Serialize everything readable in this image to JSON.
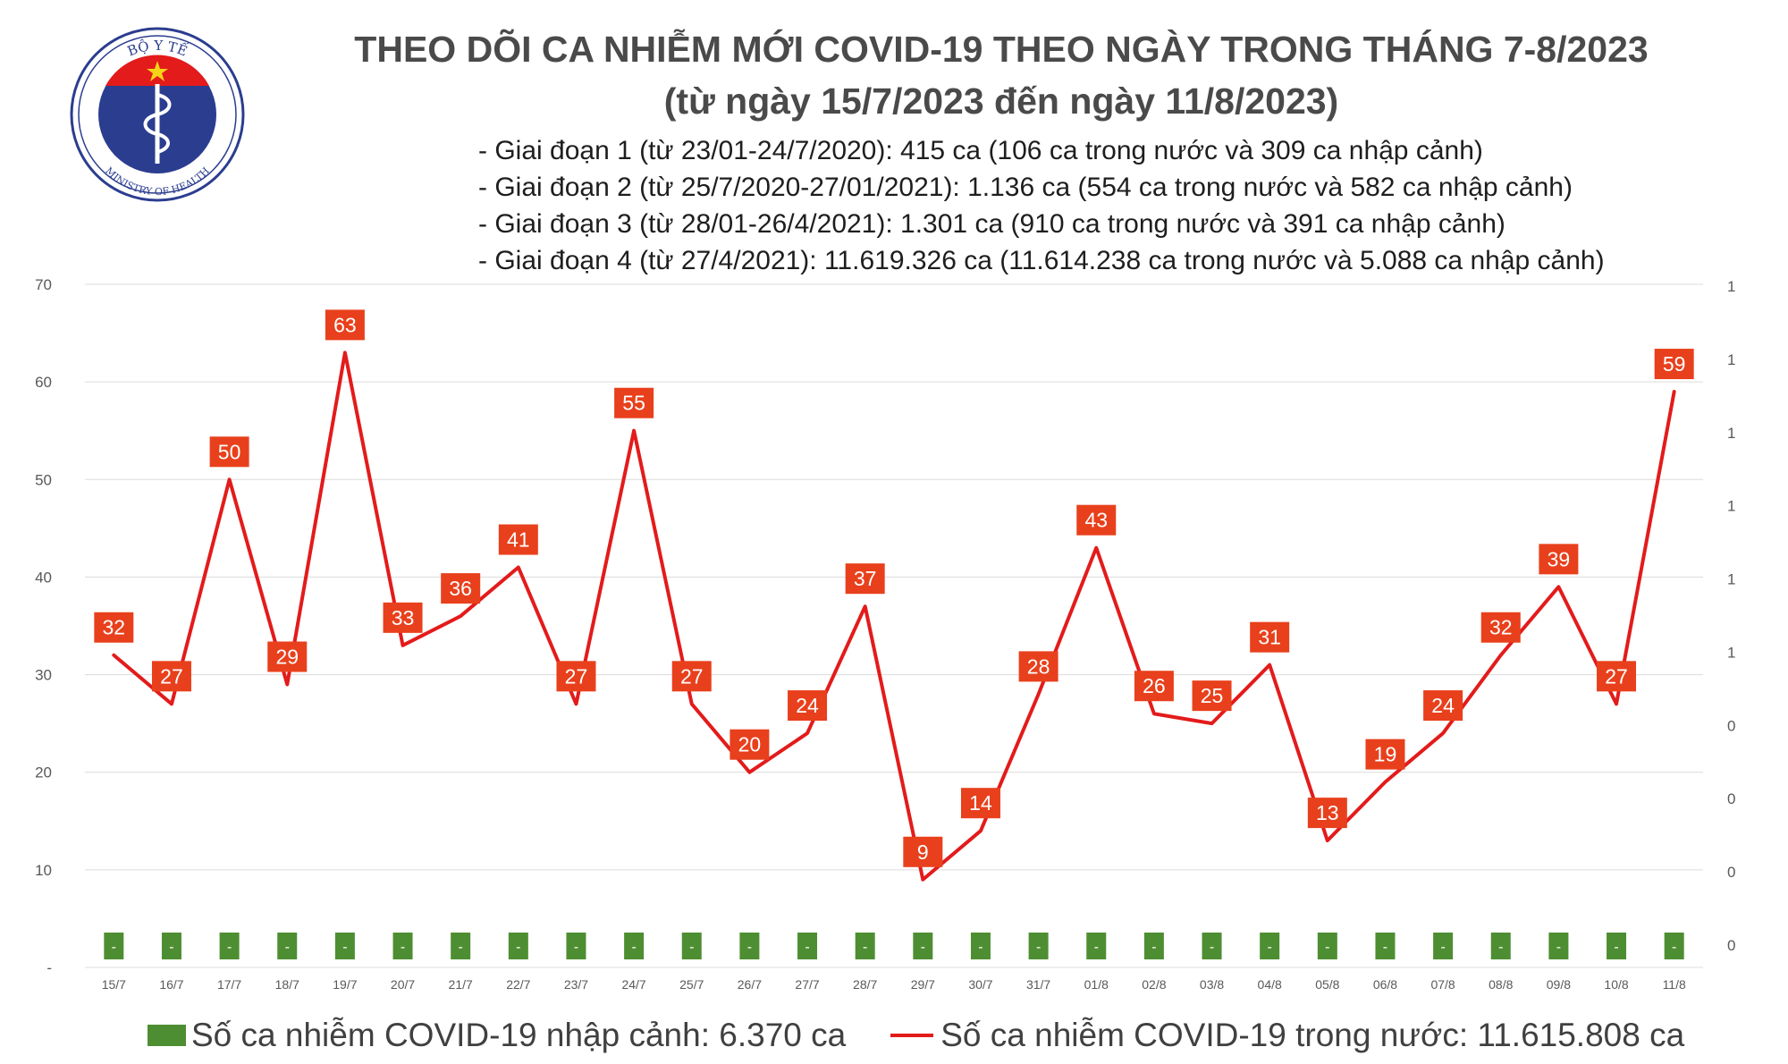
{
  "logo": {
    "text_top": "BỘ Y TẾ",
    "text_bottom": "MINISTRY OF HEALTH"
  },
  "title_line1": "THEO DÕI CA NHIỄM MỚI COVID-19 THEO NGÀY TRONG THÁNG 7-8/2023",
  "title_line2": "(từ ngày 15/7/2023 đến ngày 11/8/2023)",
  "notes": [
    "- Giai đoạn 1 (từ 23/01-24/7/2020): 415 ca (106 ca trong nước và 309 ca nhập cảnh)",
    "- Giai đoạn 2 (từ 25/7/2020-27/01/2021): 1.136 ca (554 ca trong nước và 582 ca nhập cảnh)",
    "- Giai đoạn 3 (từ 28/01-26/4/2021): 1.301 ca (910 ca trong nước và 391 ca nhập cảnh)",
    "- Giai đoạn 4 (từ 27/4/2021): 11.619.326 ca (11.614.238 ca trong nước và 5.088 ca nhập cảnh)"
  ],
  "legend": {
    "bar_label": "Số ca nhiễm COVID-19 nhập cảnh: 6.370 ca",
    "line_label": "Số ca nhiễm COVID-19 trong nước: 11.615.808 ca"
  },
  "colors": {
    "line": "#e31b1b",
    "label_box": "#e8401c",
    "bar": "#4e8e32",
    "grid": "#dcdcdc",
    "logo_blue": "#2b3d8f"
  },
  "chart_data": {
    "type": "line",
    "categories": [
      "15/7",
      "16/7",
      "17/7",
      "18/7",
      "19/7",
      "20/7",
      "21/7",
      "22/7",
      "23/7",
      "24/7",
      "25/7",
      "26/7",
      "27/7",
      "28/7",
      "29/7",
      "30/7",
      "31/7",
      "01/8",
      "02/8",
      "03/8",
      "04/8",
      "05/8",
      "06/8",
      "07/8",
      "08/8",
      "09/8",
      "10/8",
      "11/8"
    ],
    "series": [
      {
        "name": "Số ca nhiễm COVID-19 trong nước",
        "type": "line",
        "axis": "left",
        "values": [
          32,
          27,
          50,
          29,
          63,
          33,
          36,
          41,
          27,
          55,
          27,
          20,
          24,
          37,
          9,
          14,
          28,
          43,
          26,
          25,
          31,
          13,
          19,
          24,
          32,
          39,
          27,
          59
        ]
      },
      {
        "name": "Số ca nhiễm COVID-19 nhập cảnh",
        "type": "bar",
        "axis": "right",
        "values": [
          0,
          0,
          0,
          0,
          0,
          0,
          0,
          0,
          0,
          0,
          0,
          0,
          0,
          0,
          0,
          0,
          0,
          0,
          0,
          0,
          0,
          0,
          0,
          0,
          0,
          0,
          0,
          0
        ],
        "data_label": "-"
      }
    ],
    "y_left": {
      "min": 0,
      "max": 70,
      "ticks": [
        "-",
        "10",
        "20",
        "30",
        "40",
        "50",
        "60",
        "70"
      ]
    },
    "y_right": {
      "ticks": [
        "0",
        "0",
        "0",
        "0",
        "1",
        "1",
        "1",
        "1",
        "1",
        "1"
      ]
    },
    "grid": true,
    "legend_position": "bottom"
  }
}
